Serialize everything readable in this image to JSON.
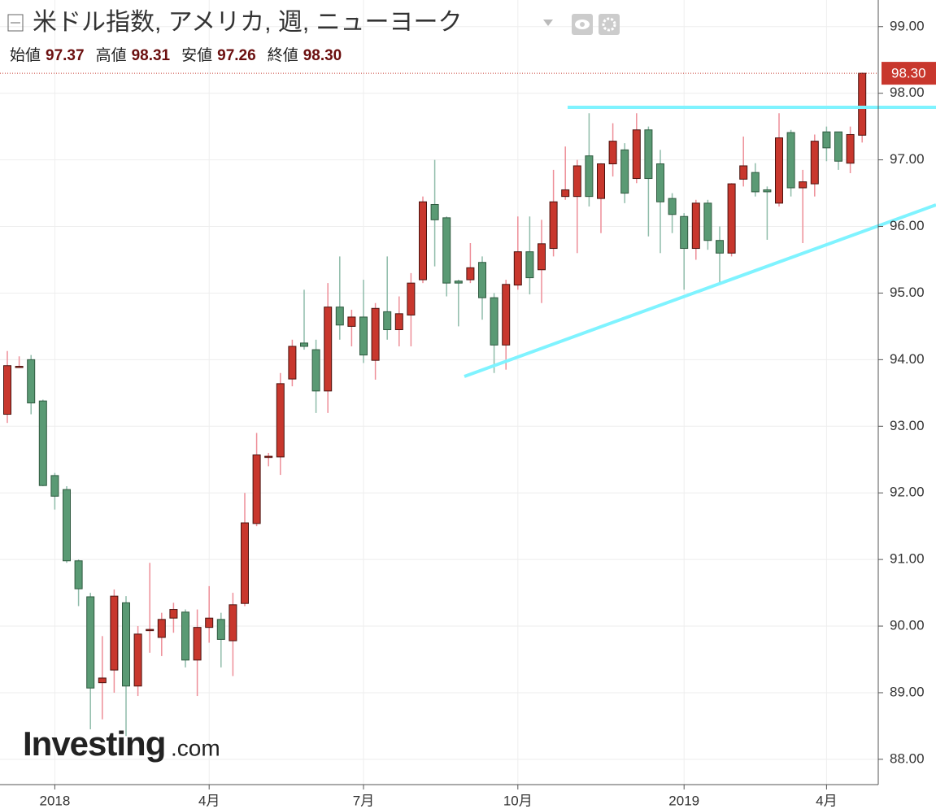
{
  "chart_data": {
    "type": "candlestick",
    "title": "米ドル指数, アメリカ, 週, ニューヨーク",
    "ohlc_legend": [
      {
        "label": "始値",
        "value": "97.37"
      },
      {
        "label": "高値",
        "value": "98.31"
      },
      {
        "label": "安値",
        "value": "97.26"
      },
      {
        "label": "終値",
        "value": "98.30"
      }
    ],
    "last_label": "98.30",
    "watermark": "Investing",
    "watermark_suffix": ".com",
    "categories": [
      null,
      null,
      null,
      null,
      "2018",
      null,
      null,
      null,
      null,
      null,
      null,
      null,
      null,
      null,
      null,
      null,
      null,
      "4月",
      null,
      null,
      null,
      null,
      null,
      null,
      null,
      null,
      null,
      null,
      null,
      null,
      "7月",
      null,
      null,
      null,
      null,
      null,
      null,
      null,
      null,
      null,
      null,
      null,
      null,
      "10月",
      null,
      null,
      null,
      null,
      null,
      null,
      null,
      null,
      null,
      null,
      null,
      null,
      null,
      "2019",
      null,
      null,
      null,
      null,
      null,
      null,
      null,
      null,
      null,
      null,
      null,
      "4月",
      null,
      null,
      null
    ],
    "open": [
      93.18,
      93.9,
      94.0,
      93.38,
      92.26,
      92.05,
      90.98,
      90.44,
      89.15,
      89.34,
      90.35,
      89.1,
      89.95,
      89.83,
      90.12,
      90.21,
      89.49,
      89.98,
      90.1,
      89.78,
      90.34,
      91.54,
      92.55,
      92.54,
      93.71,
      94.25,
      94.15,
      93.53,
      94.79,
      94.5,
      94.64,
      93.99,
      94.72,
      94.45,
      94.67,
      95.2,
      96.33,
      96.13,
      95.18,
      95.2,
      95.46,
      94.93,
      94.22,
      95.12,
      95.62,
      95.35,
      95.67,
      96.45,
      96.45,
      97.06,
      96.42,
      96.94,
      97.15,
      96.72,
      97.45,
      96.94,
      96.42,
      96.15,
      95.67,
      96.35,
      95.79,
      95.6,
      96.71,
      96.81,
      96.55,
      96.35,
      97.41,
      96.58,
      96.64,
      97.42,
      97.42,
      96.95,
      97.37
    ],
    "high": [
      94.13,
      94.05,
      94.07,
      93.4,
      92.3,
      92.1,
      91.0,
      90.5,
      89.85,
      90.55,
      90.45,
      90.0,
      90.95,
      90.2,
      90.35,
      90.25,
      90.25,
      90.6,
      90.2,
      90.5,
      92.0,
      92.9,
      92.6,
      93.8,
      94.3,
      95.05,
      94.3,
      95.15,
      95.55,
      94.75,
      95.2,
      94.85,
      95.55,
      94.95,
      95.3,
      96.45,
      97.0,
      96.15,
      95.2,
      95.75,
      95.55,
      95.0,
      95.2,
      96.15,
      96.15,
      96.1,
      96.85,
      97.2,
      97.0,
      97.7,
      96.95,
      97.55,
      97.25,
      97.7,
      97.5,
      97.15,
      96.5,
      96.2,
      96.4,
      96.4,
      96.0,
      96.65,
      97.35,
      96.95,
      96.6,
      97.7,
      97.45,
      96.85,
      97.38,
      97.5,
      97.4,
      97.5,
      98.31
    ],
    "low": [
      93.05,
      93.9,
      93.18,
      92.1,
      91.75,
      90.95,
      90.3,
      88.45,
      88.6,
      89.0,
      88.35,
      88.95,
      89.6,
      89.55,
      89.9,
      89.38,
      88.95,
      89.75,
      89.38,
      89.25,
      90.3,
      91.5,
      92.4,
      92.27,
      93.6,
      94.15,
      93.2,
      93.2,
      94.3,
      94.2,
      93.95,
      93.7,
      94.3,
      94.2,
      94.2,
      95.15,
      95.4,
      94.95,
      94.5,
      95.15,
      94.6,
      93.8,
      93.85,
      95.05,
      94.98,
      94.85,
      95.55,
      96.4,
      95.6,
      96.3,
      95.9,
      96.75,
      96.35,
      96.65,
      95.85,
      95.6,
      95.9,
      95.05,
      95.5,
      95.65,
      95.15,
      95.55,
      96.6,
      96.45,
      95.8,
      96.3,
      96.45,
      95.75,
      96.45,
      96.98,
      96.85,
      96.8,
      97.26
    ],
    "close": [
      93.91,
      93.9,
      93.35,
      92.11,
      91.95,
      90.98,
      90.56,
      89.07,
      89.22,
      90.45,
      89.1,
      89.88,
      89.95,
      90.1,
      90.25,
      89.49,
      89.98,
      90.12,
      89.8,
      90.32,
      91.55,
      92.57,
      92.55,
      93.64,
      94.2,
      94.2,
      93.53,
      94.79,
      94.52,
      94.64,
      94.07,
      94.77,
      94.45,
      94.69,
      95.15,
      96.37,
      96.1,
      95.15,
      95.15,
      95.38,
      94.93,
      94.22,
      95.13,
      95.62,
      95.23,
      95.74,
      96.37,
      96.55,
      96.91,
      96.45,
      96.94,
      97.28,
      96.5,
      97.45,
      96.72,
      96.37,
      96.18,
      95.67,
      96.35,
      95.79,
      95.6,
      96.64,
      96.91,
      96.52,
      96.52,
      97.33,
      96.58,
      96.67,
      97.28,
      97.18,
      96.98,
      97.38,
      98.3
    ],
    "up_color": "#c8372d",
    "down_color": "#5a9a74",
    "ylim": [
      87.62,
      99.4
    ],
    "yticks": [
      {
        "value": 88,
        "label": "88.00"
      },
      {
        "value": 89,
        "label": "89.00"
      },
      {
        "value": 90,
        "label": "90.00"
      },
      {
        "value": 91,
        "label": "91.00"
      },
      {
        "value": 92,
        "label": "92.00"
      },
      {
        "value": 93,
        "label": "93.00"
      },
      {
        "value": 94,
        "label": "94.00"
      },
      {
        "value": 95,
        "label": "95.00"
      },
      {
        "value": 96,
        "label": "96.00"
      },
      {
        "value": 97,
        "label": "97.00"
      },
      {
        "value": 98,
        "label": "98.00"
      },
      {
        "value": 99,
        "label": "99.00"
      }
    ],
    "grid": true
  }
}
